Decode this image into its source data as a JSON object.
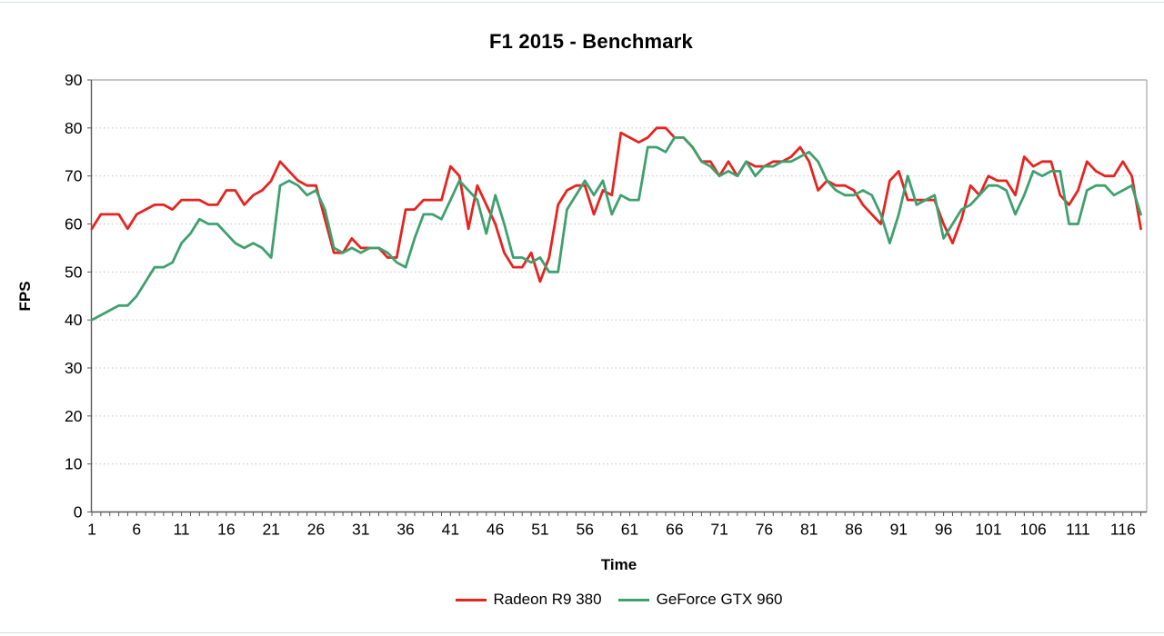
{
  "chart_data": {
    "type": "line",
    "title": "F1 2015 - Benchmark",
    "xlabel": "Time",
    "ylabel": "FPS",
    "ylim": [
      0,
      90
    ],
    "ytick_step": 10,
    "x_start": 1,
    "x_end": 118,
    "xtick_labels": [
      "1",
      "6",
      "11",
      "16",
      "21",
      "26",
      "31",
      "36",
      "41",
      "46",
      "51",
      "56",
      "61",
      "66",
      "71",
      "76",
      "81",
      "86",
      "91",
      "96",
      "101",
      "106",
      "111",
      "116"
    ],
    "grid": "horizontal-dotted",
    "legend_position": "bottom-center",
    "colors": {
      "grid": "#c3c3c3",
      "axis": "#595959",
      "plot_border": "#a6a6a6",
      "text": "#000000",
      "background": "#ffffff"
    },
    "series": [
      {
        "name": "Radeon R9 380",
        "color": "#e52420",
        "values": [
          59,
          62,
          62,
          62,
          59,
          62,
          63,
          64,
          64,
          63,
          65,
          65,
          65,
          64,
          64,
          67,
          67,
          64,
          66,
          67,
          69,
          73,
          71,
          69,
          68,
          68,
          61,
          54,
          54,
          57,
          55,
          55,
          55,
          53,
          53,
          63,
          63,
          65,
          65,
          65,
          72,
          70,
          59,
          68,
          64,
          60,
          54,
          51,
          51,
          54,
          48,
          53,
          64,
          67,
          68,
          68,
          62,
          67,
          66,
          79,
          78,
          77,
          78,
          80,
          80,
          78,
          78,
          76,
          73,
          73,
          70,
          73,
          70,
          73,
          72,
          72,
          73,
          73,
          74,
          76,
          73,
          67,
          69,
          68,
          68,
          67,
          64,
          62,
          60,
          69,
          71,
          65,
          65,
          65,
          65,
          60,
          56,
          61,
          68,
          66,
          70,
          69,
          69,
          66,
          74,
          72,
          73,
          73,
          66,
          64,
          67,
          73,
          71,
          70,
          70,
          73,
          70,
          59
        ]
      },
      {
        "name": "GeForce GTX 960",
        "color": "#3fa06e",
        "values": [
          40,
          41,
          42,
          43,
          43,
          45,
          48,
          51,
          51,
          52,
          56,
          58,
          61,
          60,
          60,
          58,
          56,
          55,
          56,
          55,
          53,
          68,
          69,
          68,
          66,
          67,
          63,
          55,
          54,
          55,
          54,
          55,
          55,
          54,
          52,
          51,
          57,
          62,
          62,
          61,
          65,
          69,
          67,
          65,
          58,
          66,
          60,
          53,
          53,
          52,
          53,
          50,
          50,
          63,
          66,
          69,
          66,
          69,
          62,
          66,
          65,
          65,
          76,
          76,
          75,
          78,
          78,
          76,
          73,
          72,
          70,
          71,
          70,
          73,
          70,
          72,
          72,
          73,
          73,
          74,
          75,
          73,
          69,
          67,
          66,
          66,
          67,
          66,
          62,
          56,
          62,
          70,
          64,
          65,
          66,
          57,
          60,
          63,
          64,
          66,
          68,
          68,
          67,
          62,
          66,
          71,
          70,
          71,
          71,
          60,
          60,
          67,
          68,
          68,
          66,
          67,
          68,
          62
        ]
      }
    ]
  }
}
